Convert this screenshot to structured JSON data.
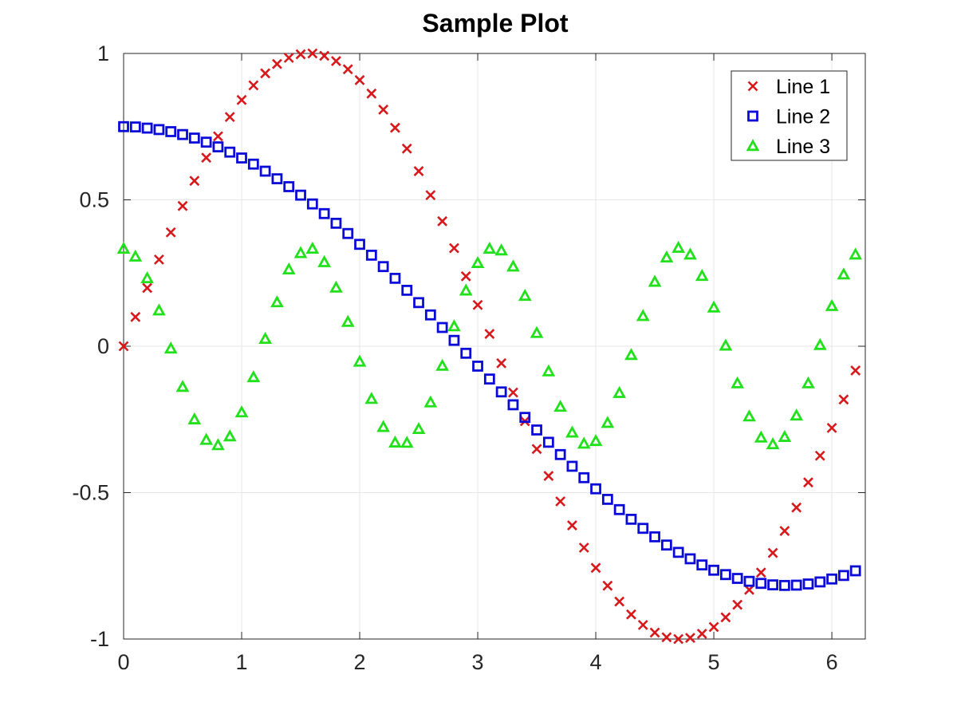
{
  "chart_data": {
    "type": "scatter",
    "title": "Sample Plot",
    "xlabel": "",
    "ylabel": "",
    "xlim": [
      0,
      6.2832
    ],
    "ylim": [
      -1,
      1
    ],
    "xticks": [
      0,
      1,
      2,
      3,
      4,
      5,
      6
    ],
    "yticks": [
      -1,
      -0.5,
      0,
      0.5,
      1
    ],
    "xtick_labels": [
      "0",
      "1",
      "2",
      "3",
      "4",
      "5",
      "6"
    ],
    "ytick_labels": [
      "-1",
      "-0.5",
      "0",
      "0.5",
      "1"
    ],
    "grid": true,
    "legend_position": "top-right",
    "x": [
      0,
      0.1,
      0.2,
      0.3,
      0.4,
      0.5,
      0.6,
      0.7,
      0.8,
      0.9,
      1.0,
      1.1,
      1.2,
      1.3,
      1.4,
      1.5,
      1.6,
      1.7,
      1.8,
      1.9,
      2.0,
      2.1,
      2.2,
      2.3,
      2.4,
      2.5,
      2.6,
      2.7,
      2.8,
      2.9,
      3.0,
      3.1,
      3.2,
      3.3,
      3.4,
      3.5,
      3.6,
      3.7,
      3.8,
      3.9,
      4.0,
      4.1,
      4.2,
      4.3,
      4.4,
      4.5,
      4.6,
      4.7,
      4.8,
      4.9,
      5.0,
      5.1,
      5.2,
      5.3,
      5.4,
      5.5,
      5.6,
      5.7,
      5.8,
      5.9,
      6.0,
      6.1,
      6.2
    ],
    "series": [
      {
        "name": "Line 1",
        "marker": "x",
        "color": "#d7191c",
        "values": [
          0.0,
          0.1,
          0.199,
          0.296,
          0.389,
          0.479,
          0.565,
          0.644,
          0.717,
          0.783,
          0.841,
          0.891,
          0.932,
          0.964,
          0.985,
          0.997,
          1.0,
          0.992,
          0.974,
          0.946,
          0.909,
          0.863,
          0.808,
          0.746,
          0.675,
          0.598,
          0.516,
          0.427,
          0.335,
          0.239,
          0.141,
          0.042,
          -0.058,
          -0.158,
          -0.256,
          -0.351,
          -0.443,
          -0.53,
          -0.612,
          -0.688,
          -0.757,
          -0.818,
          -0.872,
          -0.916,
          -0.952,
          -0.978,
          -0.994,
          -1.0,
          -0.996,
          -0.982,
          -0.959,
          -0.926,
          -0.883,
          -0.832,
          -0.773,
          -0.706,
          -0.631,
          -0.551,
          -0.465,
          -0.374,
          -0.279,
          -0.182,
          -0.083
        ]
      },
      {
        "name": "Line 2",
        "marker": "square",
        "color": "#0b0bd8",
        "values": [
          0.75,
          0.749,
          0.745,
          0.74,
          0.733,
          0.723,
          0.711,
          0.697,
          0.681,
          0.663,
          0.643,
          0.622,
          0.598,
          0.572,
          0.545,
          0.516,
          0.486,
          0.453,
          0.42,
          0.385,
          0.348,
          0.311,
          0.272,
          0.232,
          0.191,
          0.149,
          0.107,
          0.064,
          0.02,
          -0.024,
          -0.068,
          -0.112,
          -0.156,
          -0.2,
          -0.243,
          -0.286,
          -0.328,
          -0.37,
          -0.41,
          -0.449,
          -0.487,
          -0.523,
          -0.558,
          -0.591,
          -0.622,
          -0.651,
          -0.679,
          -0.704,
          -0.726,
          -0.747,
          -0.765,
          -0.78,
          -0.793,
          -0.803,
          -0.81,
          -0.815,
          -0.817,
          -0.816,
          -0.812,
          -0.805,
          -0.795,
          -0.783,
          -0.767
        ],
        "values_visible_note": ""
      },
      {
        "name": "Line 3",
        "marker": "triangle",
        "color": "#22e01c",
        "values": [
          0.333,
          0.306,
          0.232,
          0.122,
          -0.008,
          -0.139,
          -0.25,
          -0.32,
          -0.338,
          -0.308,
          -0.226,
          -0.106,
          0.025,
          0.15,
          0.262,
          0.318,
          0.333,
          0.287,
          0.2,
          0.083,
          -0.053,
          -0.18,
          -0.276,
          -0.329,
          -0.33,
          -0.283,
          -0.192,
          -0.067,
          0.068,
          0.19,
          0.284,
          0.333,
          0.327,
          0.272,
          0.172,
          0.045,
          -0.086,
          -0.207,
          -0.295,
          -0.333,
          -0.324,
          -0.262,
          -0.16,
          -0.03,
          0.103,
          0.22,
          0.303,
          0.336,
          0.313,
          0.24,
          0.132,
          0.002,
          -0.127,
          -0.24,
          -0.312,
          -0.335,
          -0.31,
          -0.237,
          -0.127,
          0.004,
          0.137,
          0.245,
          0.313
        ]
      }
    ]
  }
}
